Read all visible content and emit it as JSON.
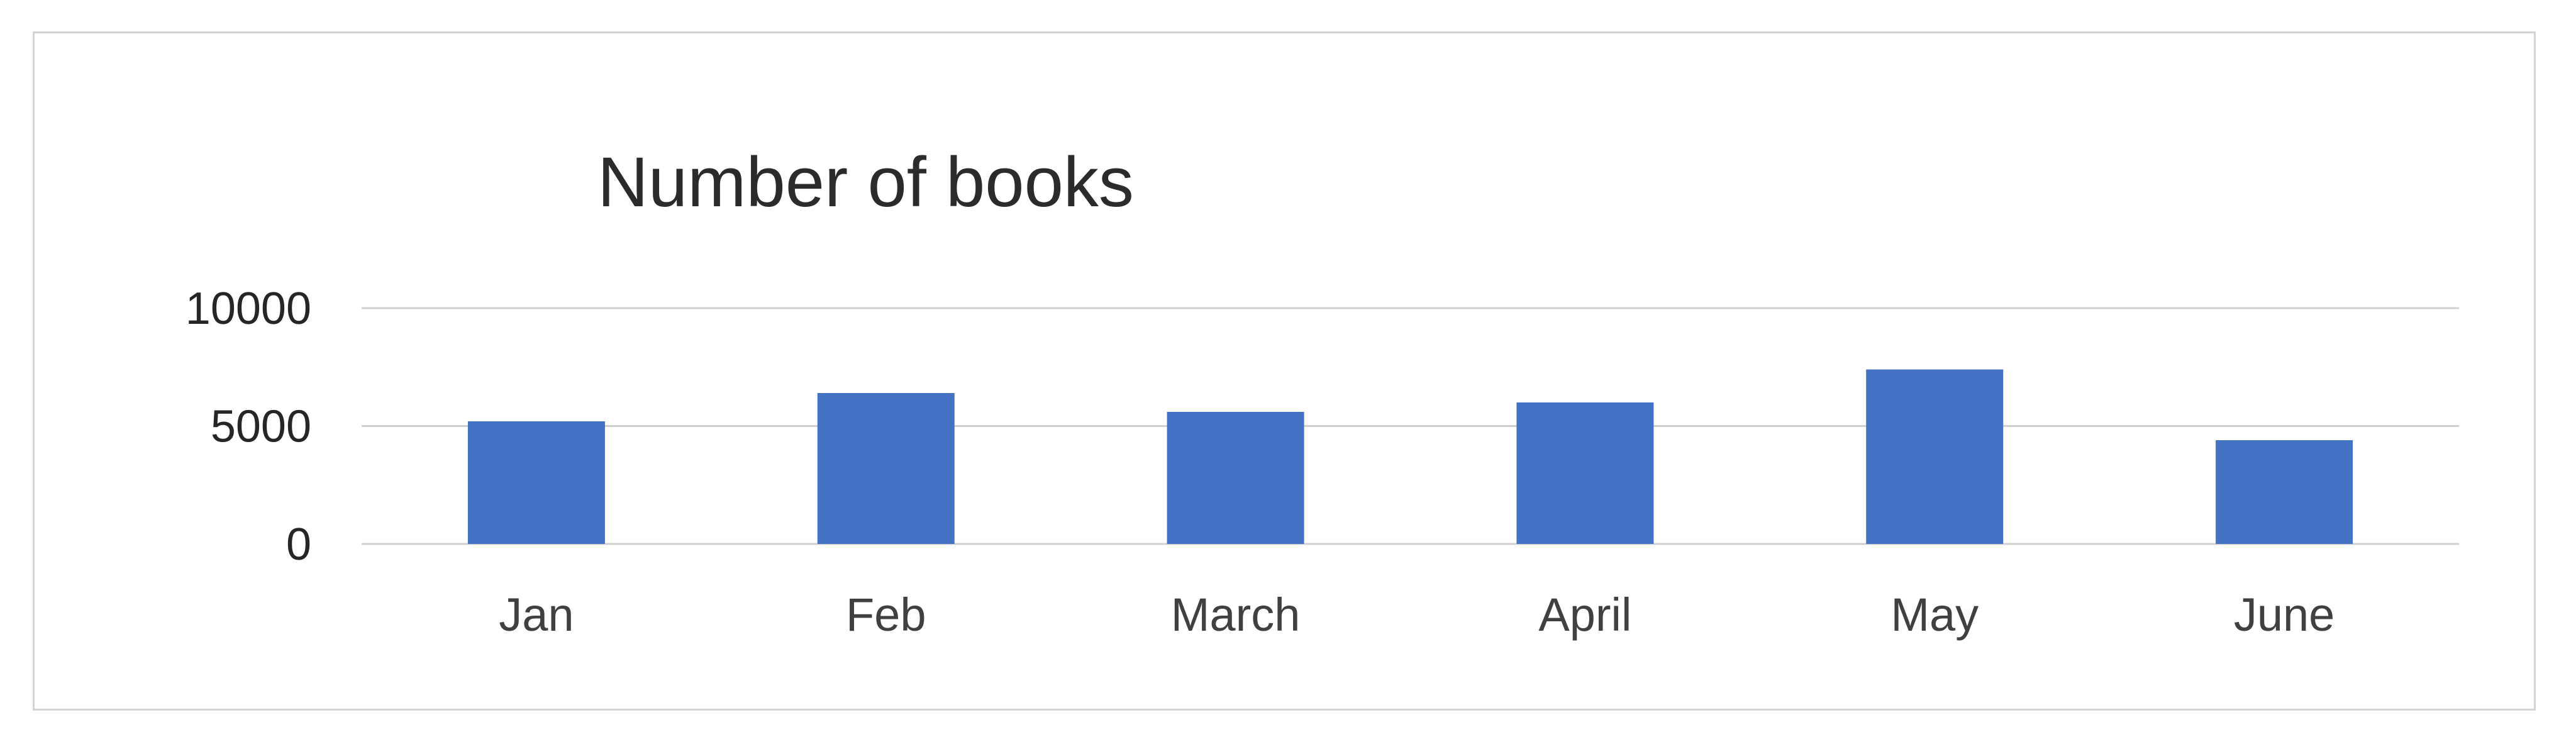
{
  "chart_data": {
    "type": "bar",
    "title": "Number of books",
    "xlabel": "",
    "ylabel": "",
    "categories": [
      "Jan",
      "Feb",
      "March",
      "April",
      "May",
      "June"
    ],
    "values": [
      5200,
      6400,
      5600,
      6000,
      7400,
      4400
    ],
    "ylim": [
      0,
      10000
    ],
    "yticks": [
      0,
      5000,
      10000
    ],
    "grid": true,
    "legend": "none",
    "bar_color": "#4472c4",
    "grid_color": "#d0d0d0"
  }
}
